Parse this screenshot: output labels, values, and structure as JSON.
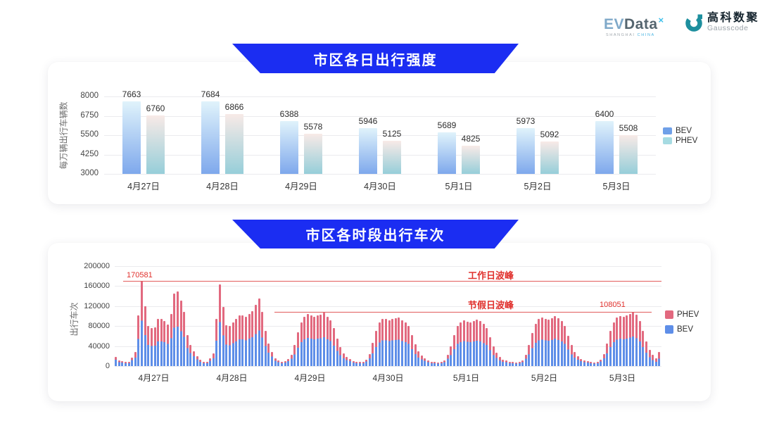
{
  "header": {
    "evdata": {
      "name_ev": "EV",
      "name_data": "Data",
      "sup": "×",
      "subtitle_left": "SHANGHAI",
      "subtitle_right": "CHINA"
    },
    "gausscode": {
      "cn": "高科数聚",
      "en": "Gausscode"
    }
  },
  "chart_data": [
    {
      "type": "bar",
      "title": "市区各日出行强度",
      "ylabel": "每万辆出行车辆数",
      "ylim": [
        3000,
        8000
      ],
      "yticks": [
        8000,
        6750,
        5500,
        4250,
        3000
      ],
      "grid": true,
      "legend_position": "right",
      "categories": [
        "4月27日",
        "4月28日",
        "4月29日",
        "4月30日",
        "5月1日",
        "5月2日",
        "5月3日"
      ],
      "series": [
        {
          "name": "BEV",
          "values": [
            7663,
            7684,
            6388,
            5946,
            5689,
            5973,
            6400
          ]
        },
        {
          "name": "PHEV",
          "values": [
            6760,
            6866,
            5578,
            5125,
            4825,
            5092,
            5508
          ]
        }
      ],
      "legend": [
        {
          "name": "BEV",
          "color": "#6fa0e8"
        },
        {
          "name": "PHEV",
          "color": "#a6dbe2"
        }
      ],
      "colors": {
        "bev_top": "#e0f3fb",
        "bev_bottom": "#7ea8ec",
        "phev_top": "#f8eae7",
        "phev_bottom": "#96ced9"
      }
    },
    {
      "type": "stacked-bar",
      "title": "市区各时段出行车次",
      "ylabel": "出行车次",
      "ylim": [
        0,
        200000
      ],
      "yticks": [
        200000,
        160000,
        120000,
        80000,
        40000,
        0
      ],
      "grid": true,
      "legend_position": "right",
      "series_colors": {
        "BEV": "#5e8ee8",
        "PHEV": "#e2697f"
      },
      "legend": [
        {
          "name": "PHEV",
          "color": "#e2697f"
        },
        {
          "name": "BEV",
          "color": "#5e8ee8"
        }
      ],
      "annotations": {
        "workday": {
          "label": "工作日波峰",
          "value_text": "170581",
          "value": 170581
        },
        "holiday": {
          "label": "节假日波峰",
          "value_text": "108051",
          "value": 108051
        }
      },
      "days": [
        {
          "date": "4月27日",
          "bev": [
            12600,
            8400,
            6650,
            5600,
            5950,
            11900,
            16800,
            54000,
            91000,
            62000,
            42000,
            40000,
            41000,
            50000,
            50000,
            48000,
            44000,
            56000,
            77000,
            79000,
            70000,
            58000,
            36000,
            26000
          ],
          "phev": [
            5400,
            3600,
            2850,
            2400,
            2550,
            5100,
            11200,
            47000,
            79581,
            58000,
            38000,
            36000,
            37000,
            45000,
            45000,
            42000,
            39000,
            49000,
            68000,
            70000,
            61000,
            50000,
            26000,
            16000
          ]
        },
        {
          "date": "4月28日",
          "bev": [
            20000,
            13500,
            9000,
            6300,
            6300,
            10500,
            15600,
            51000,
            88000,
            61000,
            43000,
            42000,
            46000,
            50000,
            53000,
            54000,
            52000,
            55000,
            58000,
            64000,
            71000,
            57000,
            40000,
            27000
          ],
          "phev": [
            10000,
            6500,
            4000,
            2700,
            2700,
            4500,
            10400,
            44000,
            76000,
            57000,
            39000,
            39000,
            42000,
            45000,
            48000,
            48000,
            47000,
            49000,
            52000,
            58000,
            64000,
            51000,
            30000,
            18000
          ]
        },
        {
          "date": "4月29日",
          "bev": [
            19000,
            11000,
            7700,
            6300,
            6650,
            9800,
            14300,
            23000,
            37000,
            48000,
            54000,
            56000,
            55000,
            54000,
            55000,
            56000,
            58000,
            54000,
            50000,
            41000,
            30000,
            22000,
            16000,
            12000
          ],
          "phev": [
            9000,
            5000,
            3300,
            2700,
            2850,
            4200,
            7700,
            19000,
            31000,
            40000,
            45000,
            48000,
            46000,
            45000,
            46000,
            47000,
            49000,
            45000,
            42000,
            35000,
            25000,
            16000,
            10000,
            6000
          ]
        },
        {
          "date": "4月30日",
          "bev": [
            9800,
            7000,
            5950,
            5600,
            6300,
            9100,
            15600,
            25000,
            38000,
            47000,
            52000,
            51000,
            50000,
            52000,
            52000,
            53000,
            50000,
            48000,
            44000,
            34000,
            24000,
            17500,
            13000,
            10000
          ],
          "phev": [
            4200,
            3000,
            2550,
            2400,
            2700,
            3900,
            8400,
            21000,
            32000,
            40000,
            43000,
            43000,
            42000,
            43000,
            44000,
            44000,
            42000,
            40000,
            36000,
            28000,
            20000,
            12500,
            8000,
            5000
          ]
        },
        {
          "date": "5月1日",
          "bev": [
            8400,
            6300,
            5600,
            5250,
            5950,
            8400,
            14300,
            22000,
            34000,
            44000,
            48000,
            50000,
            49000,
            48000,
            49000,
            51000,
            49000,
            46000,
            42000,
            32000,
            22000,
            16000,
            11500,
            8500
          ],
          "phev": [
            3600,
            2700,
            2400,
            2250,
            2550,
            3600,
            7700,
            18000,
            28000,
            36000,
            40000,
            41000,
            40000,
            39000,
            41000,
            42000,
            41000,
            39000,
            34000,
            26000,
            18000,
            11000,
            7500,
            4500
          ]
        },
        {
          "date": "5月2日",
          "bev": [
            7700,
            6300,
            5600,
            5250,
            5950,
            8400,
            15000,
            23000,
            36000,
            46000,
            51000,
            53000,
            52000,
            51000,
            52000,
            55000,
            52000,
            49000,
            44000,
            33000,
            23000,
            16500,
            12500,
            9500
          ],
          "phev": [
            3300,
            2700,
            2400,
            2250,
            2550,
            3600,
            8000,
            19000,
            30000,
            38000,
            43000,
            44000,
            43000,
            42000,
            44000,
            45000,
            44000,
            41000,
            36000,
            27000,
            19000,
            11500,
            7500,
            4500
          ]
        },
        {
          "date": "5月3日",
          "bev": [
            8400,
            6650,
            5600,
            5250,
            5950,
            9100,
            15600,
            25000,
            38000,
            48000,
            53000,
            55000,
            54000,
            55000,
            57000,
            59000,
            56000,
            49000,
            38000,
            27000,
            18000,
            12000,
            9000,
            15000
          ],
          "phev": [
            3600,
            2850,
            2400,
            2250,
            2550,
            3900,
            8400,
            20000,
            32000,
            40000,
            44000,
            45000,
            45000,
            46000,
            47000,
            49051,
            47000,
            41000,
            32000,
            23000,
            15000,
            10000,
            7000,
            13000
          ]
        }
      ]
    }
  ]
}
